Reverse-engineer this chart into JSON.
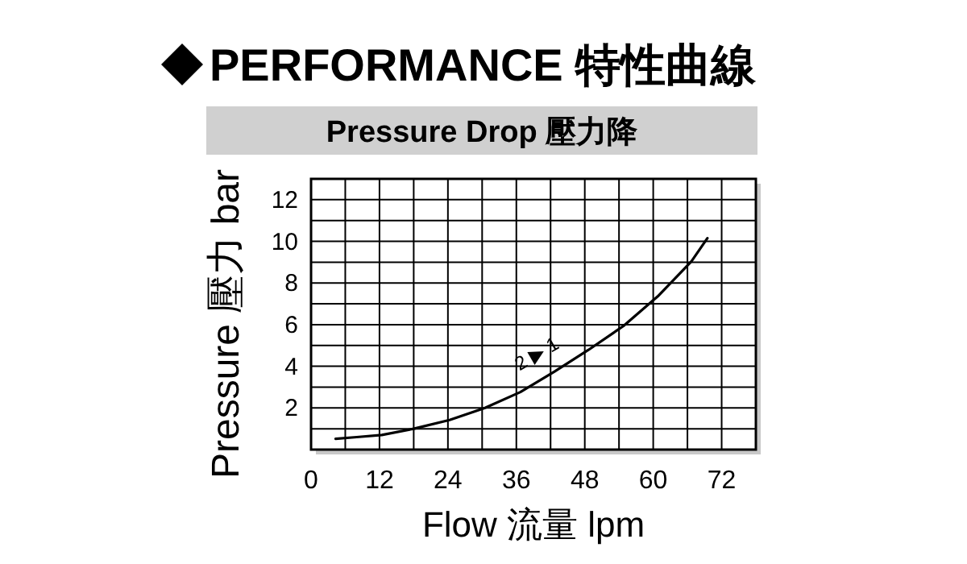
{
  "chart_data": {
    "type": "line",
    "title": "PERFORMANCE 特性曲線",
    "subtitle": "Pressure Drop 壓力降",
    "xlabel": "Flow 流量 lpm",
    "ylabel": "Pressure 壓力 bar",
    "x": [
      4.3,
      8,
      12.4,
      18,
      24.3,
      30.5,
      36.7,
      42.7,
      48.6,
      54.8,
      60.8,
      66.7,
      69.5
    ],
    "series": [
      {
        "color": "#000000",
        "values": [
          0.52,
          0.6,
          0.7,
          1.0,
          1.42,
          2.0,
          2.76,
          3.75,
          4.78,
          5.94,
          7.36,
          9.04,
          10.15
        ]
      }
    ],
    "xlim": [
      0,
      78
    ],
    "xticks": [
      0,
      {
        "value": 6,
        "label": null
      },
      12,
      {
        "value": 18,
        "label": null
      },
      24,
      {
        "value": 30,
        "label": null
      },
      36,
      {
        "value": 42,
        "label": null
      },
      48,
      {
        "value": 54,
        "label": null
      },
      60,
      {
        "value": 66,
        "label": null
      },
      72
    ],
    "ylim": [
      0,
      13
    ],
    "yticks": [
      {
        "value": 1,
        "label": null
      },
      2,
      {
        "value": 3,
        "label": null
      },
      4,
      {
        "value": 5,
        "label": null
      },
      6,
      {
        "value": 7,
        "label": null
      },
      8,
      {
        "value": 9,
        "label": null
      },
      10,
      {
        "value": 11,
        "label": null
      },
      12
    ],
    "grid": true,
    "marker": "none",
    "line_style": "solid",
    "annotations": [
      "2 ▶ 1"
    ]
  }
}
